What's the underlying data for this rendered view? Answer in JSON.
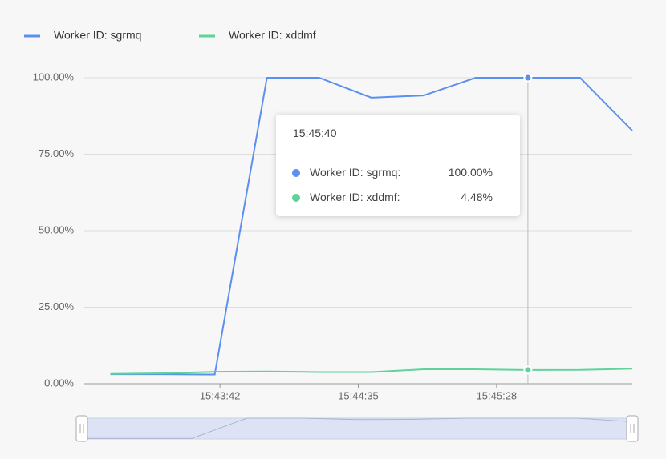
{
  "chart_data": {
    "type": "line",
    "x": [
      "15:43:00",
      "15:43:20",
      "15:43:40",
      "15:44:00",
      "15:44:20",
      "15:44:40",
      "15:45:00",
      "15:45:20",
      "15:45:40",
      "15:46:00",
      "15:46:20"
    ],
    "series": [
      {
        "name": "Worker ID: sgrmq",
        "color": "#5b8ff0",
        "values": [
          3.1,
          3.1,
          3.0,
          100,
          100,
          93.5,
          94.2,
          100,
          100,
          100,
          82.7
        ]
      },
      {
        "name": "Worker ID: xddmf",
        "color": "#5fd39a",
        "values": [
          3.2,
          3.4,
          3.9,
          4.0,
          3.8,
          3.8,
          4.7,
          4.7,
          4.48,
          4.5,
          4.9
        ]
      }
    ],
    "xlim": [
      "15:42:50",
      "15:46:20"
    ],
    "xticks": [
      "15:43:42",
      "15:44:35",
      "15:45:28"
    ],
    "ylim": [
      0,
      100
    ],
    "yticks": [
      {
        "value": 0,
        "label": "0.00%"
      },
      {
        "value": 25,
        "label": "25.00%"
      },
      {
        "value": 50,
        "label": "50.00%"
      },
      {
        "value": 75,
        "label": "75.00%"
      },
      {
        "value": 100,
        "label": "100.00%"
      }
    ],
    "grid": true,
    "legend": "top-left",
    "tooltip": {
      "title": "15:45:40",
      "rows": [
        {
          "label": "Worker ID: sgrmq:",
          "value": "100.00%"
        },
        {
          "label": "Worker ID: xddmf:",
          "value": "4.48%"
        }
      ]
    }
  }
}
